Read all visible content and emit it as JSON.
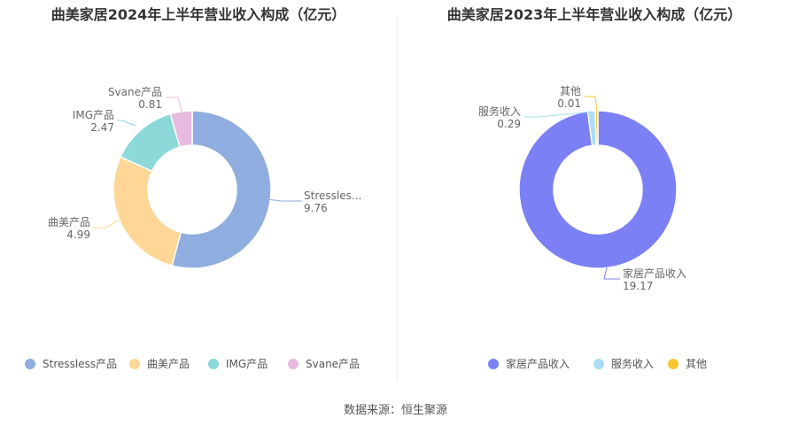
{
  "charts": [
    {
      "title": "曲美家居2024年上半年营业收入构成（亿元）",
      "chart_data": {
        "type": "pie",
        "title": "曲美家居2024年上半年营业收入构成（亿元）",
        "categories": [
          "Stressless产品",
          "曲美产品",
          "IMG产品",
          "Svane产品"
        ],
        "slice_labels": [
          "Stressles...",
          "曲美产品",
          "IMG产品",
          "Svane产品"
        ],
        "values": [
          9.76,
          4.99,
          2.47,
          0.81
        ],
        "value_labels": [
          "9.76",
          "4.99",
          "2.47",
          "0.81"
        ],
        "colors": [
          "#8fadde",
          "#fed797",
          "#8dd8d8",
          "#e7bbdf"
        ],
        "legend_position": "bottom"
      }
    },
    {
      "title": "曲美家居2023年上半年营业收入构成（亿元）",
      "chart_data": {
        "type": "pie",
        "title": "曲美家居2023年上半年营业收入构成（亿元）",
        "categories": [
          "家居产品收入",
          "服务收入",
          "其他"
        ],
        "slice_labels": [
          "家居产品收入",
          "服务收入",
          "其他"
        ],
        "values": [
          19.17,
          0.29,
          0.01
        ],
        "value_labels": [
          "19.17",
          "0.29",
          "0.01"
        ],
        "colors": [
          "#7b80f4",
          "#a8ddf5",
          "#fcc62e"
        ],
        "legend_position": "bottom"
      }
    }
  ],
  "source": "数据来源：恒生聚源"
}
